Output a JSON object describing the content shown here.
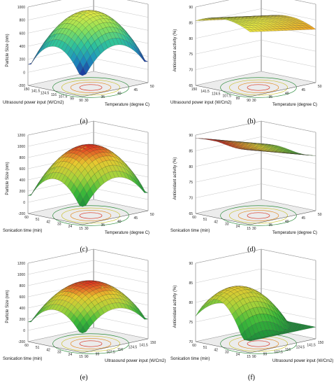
{
  "chart_data": [
    {
      "type": "surface3d",
      "panel_label": "(a)",
      "zlabel": "Particle Size  (nm)",
      "xlabel": "Ultrasound power input (W/Cm2)",
      "ylabel": "Temperature  (degree C)",
      "zticks": [
        "-200",
        "0",
        "200",
        "400",
        "600",
        "800",
        "1000"
      ],
      "zlim": [
        -200,
        1000
      ],
      "xticks": [
        "150",
        "141.5",
        "124.5",
        "116",
        "107.5",
        "99",
        "90"
      ],
      "yticks": [
        "30",
        "35",
        "40",
        "45",
        "50"
      ],
      "peak": 920,
      "corner_low": 120,
      "shape": "dome",
      "palette": [
        "#1c2f9a",
        "#1e8fbf",
        "#2fc39a",
        "#8be05a",
        "#e5e843"
      ]
    },
    {
      "type": "surface3d",
      "panel_label": "(b)",
      "zlabel": "Antioxidant activity (%)",
      "xlabel": "Ultrasound power input (W/Cm2)",
      "ylabel": "Temperature  (degree C)",
      "zticks": [
        "65",
        "70",
        "75",
        "80",
        "85",
        "90"
      ],
      "zlim": [
        65,
        90
      ],
      "xticks": [
        "150",
        "141.5",
        "124.5",
        "107.5",
        "99",
        "90"
      ],
      "yticks": [
        "30",
        "35",
        "40",
        "45",
        "50"
      ],
      "peak": 88,
      "corner_low": 82,
      "shape": "ridge",
      "palette": [
        "#f0a020",
        "#e8c030",
        "#e8e840",
        "#c8e040"
      ]
    },
    {
      "type": "surface3d",
      "panel_label": "(c)",
      "zlabel": "Particle Size  (nm)",
      "xlabel": "Sonication time (min)",
      "ylabel": "Temperature  (degree C)",
      "zticks": [
        "-200",
        "0",
        "200",
        "400",
        "600",
        "800",
        "1000",
        "1200"
      ],
      "zlim": [
        -200,
        1200
      ],
      "xticks": [
        "60",
        "51",
        "42",
        "33",
        "24",
        "15"
      ],
      "yticks": [
        "30",
        "35",
        "40",
        "45",
        "50"
      ],
      "peak": 1000,
      "corner_low": 120,
      "shape": "dome",
      "palette": [
        "#1e8f3a",
        "#3cba3a",
        "#a8d23a",
        "#e8c830",
        "#e03020"
      ]
    },
    {
      "type": "surface3d",
      "panel_label": "(d)",
      "zlabel": "Antioxidant activity (%)",
      "xlabel": "Sonication time (min)",
      "ylabel": "Temperature  (degree C)",
      "zticks": [
        "65",
        "70",
        "75",
        "80",
        "85",
        "90"
      ],
      "zlim": [
        65,
        90
      ],
      "xticks": [
        "60",
        "51",
        "42",
        "33",
        "24",
        "15"
      ],
      "yticks": [
        "30",
        "35",
        "40",
        "45",
        "50"
      ],
      "peak": 89,
      "corner_low": 82,
      "shape": "slope",
      "palette": [
        "#2fa030",
        "#8ccc30",
        "#e8d830",
        "#e89020",
        "#d02818"
      ]
    },
    {
      "type": "surface3d",
      "panel_label": "(e)",
      "zlabel": "Particle Size  (nm)",
      "xlabel": "Sonication time (min)",
      "ylabel": "Ultrasound power input (W/Cm2)",
      "zticks": [
        "-200",
        "0",
        "200",
        "400",
        "600",
        "800",
        "1000",
        "1200"
      ],
      "zlim": [
        -200,
        1200
      ],
      "xticks": [
        "60",
        "51",
        "42",
        "33",
        "24",
        "15"
      ],
      "yticks": [
        "90",
        "99",
        "107.5",
        "116",
        "124.5",
        "141.5",
        "150"
      ],
      "peak": 850,
      "corner_low": 150,
      "shape": "dome",
      "palette": [
        "#1e8f3a",
        "#3cba3a",
        "#a8d23a",
        "#e8c830",
        "#e03020"
      ]
    },
    {
      "type": "surface3d",
      "panel_label": "(f)",
      "zlabel": "Antioxidant activity (%)",
      "xlabel": "Sonication time (min)",
      "ylabel": "Ultrasound power input (W/Cm2)",
      "zticks": [
        "70",
        "75",
        "80",
        "85",
        "90"
      ],
      "zlim": [
        70,
        90
      ],
      "xticks": [
        "60",
        "51",
        "42",
        "33",
        "24",
        "15"
      ],
      "yticks": [
        "90",
        "99",
        "107.5",
        "116",
        "124.5",
        "141.5",
        "150"
      ],
      "peak": 88,
      "corner_low": 73,
      "shape": "saddle",
      "palette": [
        "#1e8f3a",
        "#3cba3a",
        "#a8d23a",
        "#e8c830",
        "#e03020"
      ]
    }
  ]
}
